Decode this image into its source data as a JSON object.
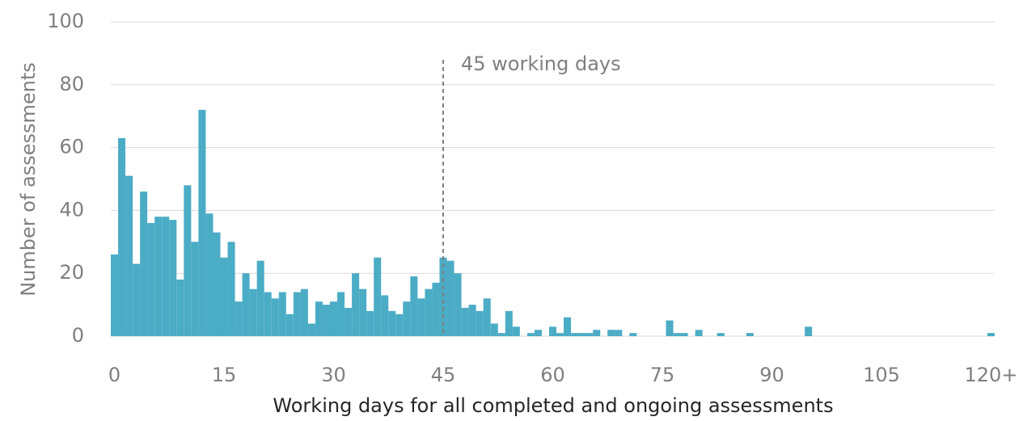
{
  "chart_data": {
    "type": "histogram",
    "xlabel": "Working days for all completed and ongoing assessments",
    "ylabel": "Number of assessments",
    "color": "#4bacc6",
    "bins": [
      -0.5,
      0.5,
      1.5,
      2.5,
      3.5,
      4.5,
      5.5,
      6.5,
      7.5,
      8.5,
      9.5,
      10.5,
      11.5,
      12.5,
      13.5,
      14.5,
      15.5,
      16.5,
      17.5,
      18.5,
      19.5,
      20.5,
      21.5,
      22.5,
      23.5,
      24.5,
      25.5,
      26.5,
      27.5,
      28.5,
      29.5,
      30.5,
      31.5,
      32.5,
      33.5,
      34.5,
      35.5,
      36.5,
      37.5,
      38.5,
      39.5,
      40.5,
      41.5,
      42.5,
      43.5,
      44.5,
      45.5,
      46.5,
      47.5,
      48.5,
      49.5,
      50.5,
      51.5,
      52.5,
      53.5,
      54.5,
      55.5,
      56.5,
      57.5,
      58.5,
      59.5,
      60.5,
      61.5,
      62.5,
      63.5,
      64.5,
      65.5,
      66.5,
      67.5,
      68.5,
      69.5,
      70.5,
      71.5,
      72.5,
      73.5,
      74.5,
      75.5,
      76.5,
      77.5,
      78.5,
      79.5,
      80.5,
      81.5,
      82.5,
      83.5,
      84.5,
      85.5,
      86.5,
      87.5,
      88.5,
      89.5,
      90.5,
      91.5,
      92.5,
      93.5,
      94.5,
      95.5,
      96.5,
      97.5,
      98.5,
      99.5,
      100.5,
      101.5,
      102.5,
      103.5,
      104.5,
      105.5,
      106.5,
      107.5,
      108.5,
      109.5,
      110.5,
      111.5,
      112.5,
      113.5,
      114.5,
      115.5,
      116.5,
      117.5,
      118.5,
      119.5,
      120.5
    ],
    "values": [
      26,
      63,
      51,
      23,
      46,
      36,
      38,
      38,
      37,
      18,
      48,
      30,
      72,
      39,
      33,
      25,
      30,
      11,
      20,
      15,
      24,
      14,
      12,
      14,
      7,
      14,
      15,
      4,
      11,
      10,
      11,
      14,
      9,
      20,
      15,
      8,
      25,
      13,
      8,
      7,
      11,
      19,
      12,
      15,
      17,
      25,
      24,
      20,
      9,
      10,
      8,
      12,
      4,
      1,
      8,
      3,
      0,
      1,
      2,
      0,
      3,
      1,
      6,
      1,
      1,
      1,
      2,
      0,
      2,
      2,
      0,
      1,
      0,
      0,
      0,
      0,
      5,
      1,
      1,
      0,
      2,
      0,
      0,
      1,
      0,
      0,
      0,
      1,
      0,
      0,
      0,
      0,
      0,
      0,
      0,
      3,
      0,
      0,
      0,
      0,
      0,
      0,
      0,
      0,
      0,
      0,
      0,
      0,
      0,
      0,
      0,
      0,
      0,
      0,
      0,
      0,
      0,
      0,
      0,
      0,
      1
    ],
    "xlim": [
      -0.5,
      120.5
    ],
    "xticks": [
      0,
      15,
      30,
      45,
      60,
      75,
      90,
      105,
      {
        "value": 120,
        "label": "120+"
      }
    ],
    "ylim": [
      0,
      100
    ],
    "yticks": [
      0,
      20,
      40,
      60,
      80,
      100
    ],
    "grid": true,
    "reference_line": {
      "x": 45,
      "label": "45 working days"
    }
  }
}
